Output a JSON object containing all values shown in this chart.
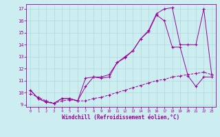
{
  "xlabel": "Windchill (Refroidissement éolien,°C)",
  "xlim": [
    -0.5,
    23.5
  ],
  "ylim": [
    8.8,
    17.4
  ],
  "xticks": [
    0,
    1,
    2,
    3,
    4,
    5,
    6,
    7,
    8,
    9,
    10,
    11,
    12,
    13,
    14,
    15,
    16,
    17,
    18,
    19,
    20,
    21,
    22,
    23
  ],
  "yticks": [
    9,
    10,
    11,
    12,
    13,
    14,
    15,
    16,
    17
  ],
  "bg_color": "#cceef0",
  "grid_color": "#b0d8dc",
  "line_color": "#990099",
  "line1_x": [
    0,
    1,
    2,
    3,
    4,
    5,
    6,
    7,
    8,
    9,
    10,
    11,
    12,
    13,
    14,
    15,
    16,
    17,
    18,
    19,
    20,
    21,
    22,
    23
  ],
  "line1_y": [
    10.2,
    9.5,
    9.2,
    9.1,
    9.5,
    9.5,
    9.3,
    11.2,
    11.3,
    11.2,
    11.3,
    12.5,
    12.9,
    13.5,
    14.5,
    15.1,
    16.5,
    16.0,
    13.8,
    13.8,
    11.4,
    10.5,
    11.3,
    11.3
  ],
  "line2_x": [
    0,
    1,
    2,
    3,
    4,
    5,
    6,
    7,
    8,
    9,
    10,
    11,
    12,
    13,
    14,
    15,
    16,
    17,
    18,
    19,
    20,
    21,
    22,
    23
  ],
  "line2_y": [
    10.2,
    9.5,
    9.2,
    9.1,
    9.5,
    9.5,
    9.3,
    10.5,
    11.3,
    11.3,
    11.5,
    12.5,
    13.0,
    13.5,
    14.5,
    15.2,
    16.6,
    17.0,
    17.1,
    14.0,
    14.0,
    14.0,
    17.0,
    11.5
  ],
  "line3_x": [
    0,
    1,
    2,
    3,
    4,
    5,
    6,
    7,
    8,
    9,
    10,
    11,
    12,
    13,
    14,
    15,
    16,
    17,
    18,
    19,
    20,
    21,
    22,
    23
  ],
  "line3_y": [
    9.9,
    9.6,
    9.3,
    9.1,
    9.3,
    9.4,
    9.3,
    9.3,
    9.5,
    9.6,
    9.8,
    10.0,
    10.2,
    10.4,
    10.6,
    10.8,
    11.0,
    11.1,
    11.3,
    11.4,
    11.5,
    11.6,
    11.7,
    11.5
  ]
}
